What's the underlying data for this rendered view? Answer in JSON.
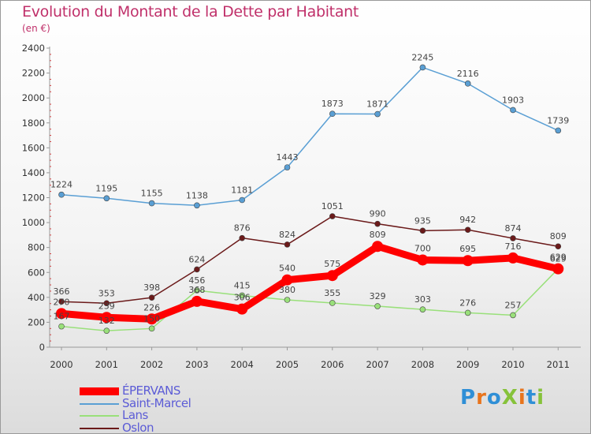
{
  "title": "Evolution du Montant de la Dette par Habitant",
  "unit_label": "(en €)",
  "logo_text": "ProXiti",
  "logo_colors": [
    "#2f8fd6",
    "#e8741c",
    "#2f8fd6",
    "#86c23a",
    "#e8741c",
    "#2f8fd6",
    "#86c23a"
  ],
  "chart_data": {
    "type": "line",
    "title": "Evolution du Montant de la Dette par Habitant",
    "ylabel": "(en €)",
    "xlabel": "",
    "x": [
      "2000",
      "2001",
      "2002",
      "2003",
      "2004",
      "2005",
      "2006",
      "2007",
      "2008",
      "2009",
      "2010",
      "2011"
    ],
    "ylim": [
      0,
      2400
    ],
    "yticks": [
      0,
      200,
      400,
      600,
      800,
      1000,
      1200,
      1400,
      1600,
      1800,
      2000,
      2200,
      2400
    ],
    "grid": false,
    "legend_position": "bottom-left",
    "series": [
      {
        "name": "Saint-Marcel",
        "color": "#5a9fd4",
        "values": [
          1224,
          1195,
          1155,
          1138,
          1181,
          1443,
          1873,
          1871,
          2245,
          2116,
          1903,
          1739
        ]
      },
      {
        "name": "Oslon",
        "color": "#6b1a1a",
        "values": [
          366,
          353,
          398,
          624,
          876,
          824,
          1051,
          990,
          935,
          942,
          874,
          809
        ]
      },
      {
        "name": "Lans",
        "color": "#99e07a",
        "values": [
          167,
          132,
          150,
          456,
          415,
          380,
          355,
          329,
          303,
          276,
          257,
          629
        ]
      },
      {
        "name": "ÉPERVANS",
        "color": "#ff0000",
        "values": [
          270,
          239,
          226,
          368,
          306,
          540,
          575,
          809,
          700,
          695,
          716,
          629
        ]
      }
    ]
  }
}
